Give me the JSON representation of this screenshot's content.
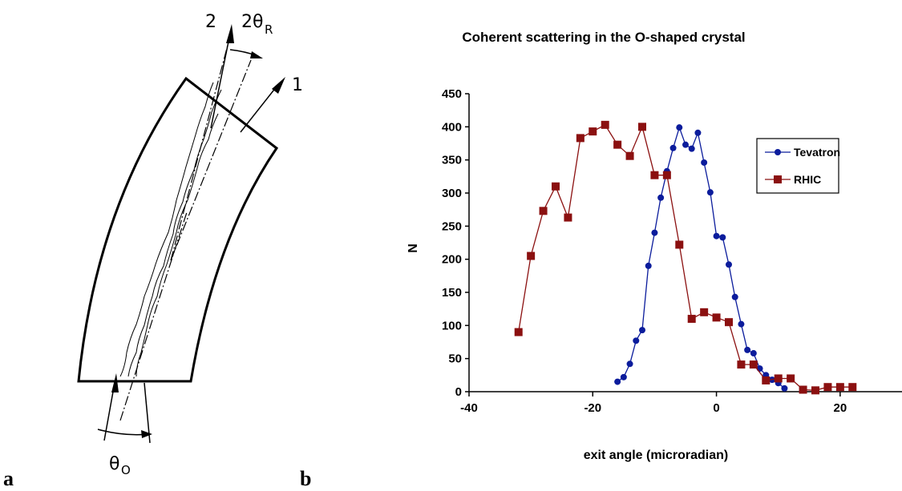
{
  "panel_a": {
    "label": "a",
    "beam_label_1": "1",
    "beam_label_2": "2",
    "bend_label": "2θ",
    "bend_label_sub": "R",
    "incidence_label": "θ",
    "incidence_label_sub": "O"
  },
  "panel_b": {
    "label": "b"
  },
  "chart_data": {
    "type": "line",
    "title": "Coherent scattering in the O-shaped crystal",
    "xlabel": "exit angle (microradian)",
    "ylabel": "N",
    "xlim": [
      -40,
      30
    ],
    "ylim": [
      0,
      450
    ],
    "xticks": [
      -40,
      -20,
      0,
      20
    ],
    "yticks": [
      0,
      50,
      100,
      150,
      200,
      250,
      300,
      350,
      400,
      450
    ],
    "legend_position": "right",
    "grid": false,
    "series": [
      {
        "name": "Tevatron",
        "color": "#0b1c9c",
        "marker": "circle",
        "x": [
          -16,
          -15,
          -14,
          -13,
          -12,
          -11,
          -10,
          -9,
          -8,
          -7,
          -6,
          -5,
          -4,
          -3,
          -2,
          -1,
          0,
          1,
          2,
          3,
          4,
          5,
          6,
          7,
          8,
          9,
          10,
          11
        ],
        "values": [
          15,
          22,
          42,
          77,
          93,
          190,
          240,
          293,
          333,
          368,
          399,
          373,
          367,
          391,
          346,
          301,
          235,
          233,
          192,
          143,
          102,
          63,
          58,
          35,
          25,
          18,
          13,
          5
        ]
      },
      {
        "name": "RHIC",
        "color": "#8b1010",
        "marker": "square",
        "x": [
          -32,
          -30,
          -28,
          -26,
          -24,
          -22,
          -20,
          -18,
          -16,
          -14,
          -12,
          -10,
          -8,
          -6,
          -4,
          -2,
          0,
          2,
          4,
          6,
          8,
          10,
          12,
          14,
          16,
          18,
          20,
          22
        ],
        "values": [
          90,
          205,
          273,
          310,
          263,
          383,
          393,
          403,
          373,
          356,
          400,
          327,
          327,
          222,
          110,
          120,
          112,
          105,
          41,
          41,
          17,
          20,
          20,
          3,
          2,
          7,
          7,
          7
        ]
      }
    ]
  }
}
